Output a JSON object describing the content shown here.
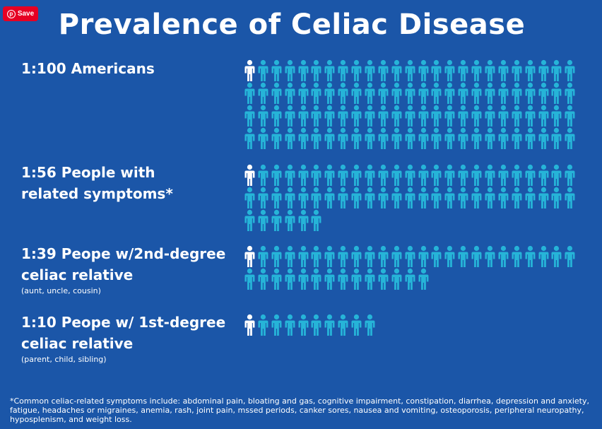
{
  "save_button": {
    "label": "Save",
    "icon": "pinterest-icon"
  },
  "title": "Prevalence of Celiac Disease",
  "colors": {
    "background": "#1b56a8",
    "highlight_person": "#ffffff",
    "person": "#26b4d8",
    "save_button": "#e60023"
  },
  "rows": [
    {
      "label": "1:100 Americans",
      "sublabel": "",
      "affected": 1,
      "total": 100
    },
    {
      "label_lines": [
        "1:56 People with",
        "related symptoms*"
      ],
      "sublabel": "",
      "affected": 1,
      "total": 56
    },
    {
      "label_lines": [
        "1:39 Peope w/2nd-degree",
        "celiac relative"
      ],
      "sublabel": "(aunt, uncle, cousin)",
      "affected": 1,
      "total": 39
    },
    {
      "label_lines": [
        "1:10 Peope w/ 1st-degree",
        "celiac relative"
      ],
      "sublabel": "(parent, child, sibling)",
      "affected": 1,
      "total": 10
    }
  ],
  "footnote": "*Common celiac-related symptoms include: abdominal pain, bloating and gas, cognitive impairment, constipation, diarrhea, depression and anxiety, fatigue, headaches or migraines, anemia, rash, joint pain, mssed periods, canker sores, nausea and vomiting, osteoporosis, peripheral neuropathy, hyposplenism, and weight loss."
}
